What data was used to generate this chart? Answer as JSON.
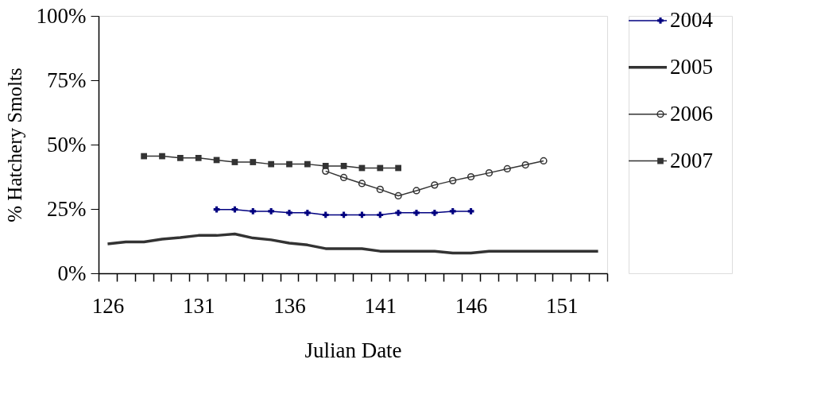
{
  "chart_data": {
    "type": "line",
    "xlabel": "Julian Date",
    "ylabel": "% Hatchery Smolts",
    "xlim": [
      125.5,
      153.5
    ],
    "xticks": [
      126,
      131,
      136,
      141,
      146,
      151,
      {
        "value": 125.5,
        "label": null
      },
      {
        "value": 126.5,
        "label": null
      },
      {
        "value": 127.5,
        "label": null
      },
      {
        "value": 128.5,
        "label": null
      },
      {
        "value": 129.5,
        "label": null
      },
      {
        "value": 130.5,
        "label": null
      },
      {
        "value": 131.5,
        "label": null
      },
      {
        "value": 132.5,
        "label": null
      },
      {
        "value": 133.5,
        "label": null
      },
      {
        "value": 134.5,
        "label": null
      },
      {
        "value": 135.5,
        "label": null
      },
      {
        "value": 136.5,
        "label": null
      },
      {
        "value": 137.5,
        "label": null
      },
      {
        "value": 138.5,
        "label": null
      },
      {
        "value": 139.5,
        "label": null
      },
      {
        "value": 140.5,
        "label": null
      },
      {
        "value": 141.5,
        "label": null
      },
      {
        "value": 142.5,
        "label": null
      },
      {
        "value": 143.5,
        "label": null
      },
      {
        "value": 144.5,
        "label": null
      },
      {
        "value": 145.5,
        "label": null
      },
      {
        "value": 146.5,
        "label": null
      },
      {
        "value": 147.5,
        "label": null
      },
      {
        "value": 148.5,
        "label": null
      },
      {
        "value": 149.5,
        "label": null
      },
      {
        "value": 150.5,
        "label": null
      },
      {
        "value": 151.5,
        "label": null
      },
      {
        "value": 152.5,
        "label": null
      },
      {
        "value": 153.5,
        "label": null
      }
    ],
    "ylim": [
      0,
      100
    ],
    "yticks": [
      {
        "value": 0,
        "label": "0%"
      },
      {
        "value": 25,
        "label": "25%"
      },
      {
        "value": 50,
        "label": "50%"
      },
      {
        "value": 75,
        "label": "75%"
      },
      {
        "value": 100,
        "label": "100%"
      }
    ],
    "grid": false,
    "legend": "right",
    "series": [
      {
        "name": "2004",
        "color": "#000080",
        "marker": "cross",
        "x": [
          132,
          133,
          134,
          135,
          136,
          137,
          138,
          139,
          140,
          141,
          142,
          143,
          144,
          145,
          146
        ],
        "values": [
          24.8,
          24.8,
          24.1,
          24.1,
          23.5,
          23.5,
          22.7,
          22.7,
          22.7,
          22.7,
          23.5,
          23.5,
          23.5,
          24.1,
          24.1
        ]
      },
      {
        "name": "2005",
        "color": "#333333",
        "marker": "none",
        "x": [
          126,
          127,
          128,
          129,
          130,
          131,
          132,
          133,
          134,
          135,
          136,
          137,
          138,
          139,
          140,
          141,
          142,
          143,
          144,
          145,
          146,
          147,
          148,
          149,
          150,
          151,
          152,
          153
        ],
        "values": [
          11.4,
          12.2,
          12.2,
          13.3,
          13.9,
          14.7,
          14.7,
          15.3,
          13.7,
          13,
          11.7,
          11,
          9.6,
          9.6,
          9.6,
          8.6,
          8.6,
          8.6,
          8.6,
          7.9,
          7.9,
          8.6,
          8.6,
          8.6,
          8.6,
          8.6,
          8.6,
          8.6
        ]
      },
      {
        "name": "2006",
        "color": "#333333",
        "marker": "circle",
        "x": [
          138,
          139,
          140,
          141,
          142,
          143,
          144,
          145,
          146,
          147,
          148,
          149,
          150
        ],
        "values": [
          39.7,
          37.2,
          34.9,
          32.6,
          30.1,
          32.1,
          34.3,
          36,
          37.5,
          39,
          40.6,
          42.1,
          43.7
        ]
      },
      {
        "name": "2007",
        "color": "#333333",
        "marker": "square",
        "x": [
          128,
          129,
          130,
          131,
          132,
          133,
          134,
          135,
          136,
          137,
          138,
          139,
          140,
          141,
          142
        ],
        "values": [
          45.5,
          45.5,
          44.8,
          44.8,
          44,
          43.2,
          43.2,
          42.4,
          42.4,
          42.4,
          41.7,
          41.7,
          40.9,
          40.9,
          40.9
        ]
      }
    ]
  }
}
